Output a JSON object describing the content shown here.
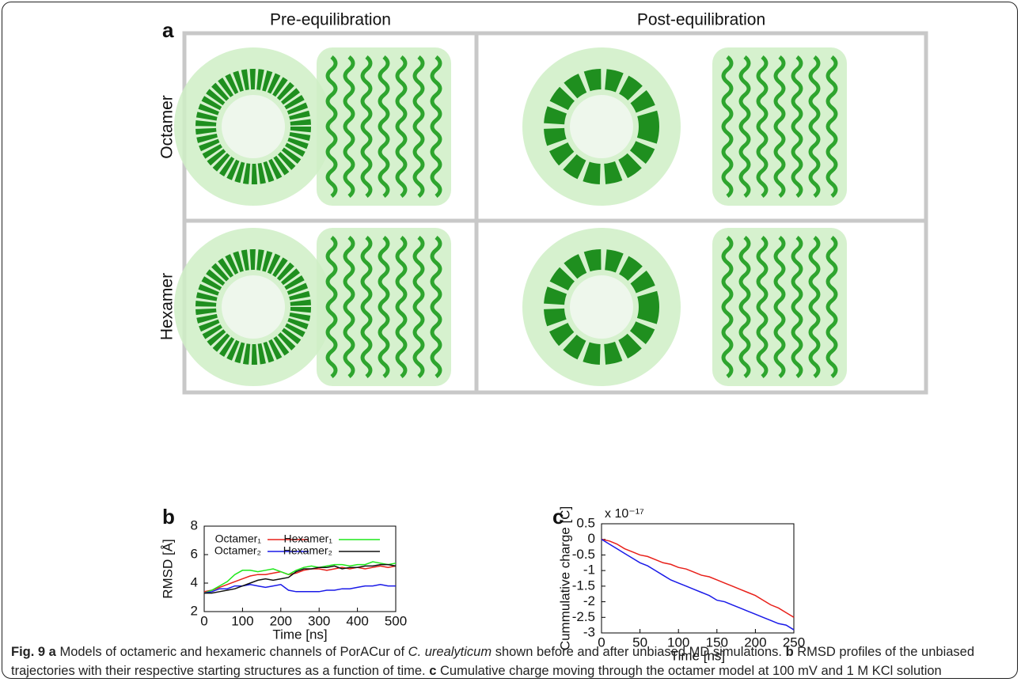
{
  "panel_a": {
    "label": "a",
    "columns": [
      "Pre-equilibration",
      "Post-equilibration"
    ],
    "rows": [
      "Octamer",
      "Hexamer"
    ]
  },
  "chart_data": [
    {
      "type": "line",
      "panel": "b",
      "x_label": "Time [ns]",
      "y_label": "RMSD [Å]",
      "x": [
        0,
        20,
        40,
        60,
        80,
        100,
        120,
        140,
        160,
        180,
        200,
        220,
        240,
        260,
        280,
        300,
        320,
        340,
        360,
        380,
        400,
        420,
        440,
        460,
        480,
        500
      ],
      "series": [
        {
          "name": "Octamer₁",
          "color": "#e8201a",
          "values": [
            3.4,
            3.5,
            3.7,
            3.9,
            4.1,
            4.3,
            4.5,
            4.6,
            4.6,
            4.7,
            4.8,
            4.6,
            4.7,
            4.9,
            5.0,
            5.0,
            4.9,
            5.0,
            5.1,
            5.0,
            5.1,
            5.0,
            5.1,
            5.2,
            5.1,
            5.2
          ]
        },
        {
          "name": "Hexamer₁",
          "color": "#1ee81a",
          "values": [
            3.3,
            3.5,
            3.8,
            4.1,
            4.6,
            4.9,
            4.9,
            4.8,
            4.9,
            5.0,
            4.8,
            4.6,
            4.9,
            5.1,
            5.2,
            5.1,
            5.2,
            5.3,
            5.3,
            5.2,
            5.3,
            5.3,
            5.5,
            5.4,
            5.3,
            5.4
          ]
        },
        {
          "name": "Octamer₂",
          "color": "#1a1ae8",
          "values": [
            3.3,
            3.4,
            3.6,
            3.6,
            3.8,
            3.8,
            3.9,
            3.8,
            3.7,
            3.8,
            3.9,
            3.5,
            3.4,
            3.4,
            3.4,
            3.4,
            3.5,
            3.5,
            3.6,
            3.6,
            3.7,
            3.8,
            3.8,
            3.9,
            3.8,
            3.8
          ]
        },
        {
          "name": "Hexamer₂",
          "color": "#111111",
          "values": [
            3.3,
            3.3,
            3.4,
            3.5,
            3.6,
            3.8,
            4.0,
            4.2,
            4.3,
            4.2,
            4.3,
            4.4,
            4.8,
            5.0,
            5.0,
            5.1,
            5.1,
            5.2,
            5.0,
            5.1,
            5.1,
            5.2,
            5.2,
            5.3,
            5.3,
            5.2
          ]
        }
      ],
      "xlim": [
        0,
        500
      ],
      "xticks": [
        0,
        100,
        200,
        300,
        400,
        500
      ],
      "ylim": [
        2,
        8
      ],
      "yticks": [
        2,
        4,
        6,
        8
      ]
    },
    {
      "type": "line",
      "panel": "c",
      "x_label": "Time [ns]",
      "y_label": "Cummulative charge [C]",
      "y_multiplier": "x 10⁻¹⁷",
      "x": [
        0,
        10,
        20,
        30,
        40,
        50,
        60,
        70,
        80,
        90,
        100,
        110,
        120,
        130,
        140,
        150,
        160,
        170,
        180,
        190,
        200,
        210,
        220,
        230,
        240,
        250
      ],
      "series": [
        {
          "color": "#e8201a",
          "values": [
            0,
            -0.05,
            -0.15,
            -0.3,
            -0.4,
            -0.5,
            -0.55,
            -0.65,
            -0.75,
            -0.8,
            -0.9,
            -0.95,
            -1.05,
            -1.15,
            -1.2,
            -1.3,
            -1.4,
            -1.5,
            -1.6,
            -1.7,
            -1.8,
            -1.95,
            -2.1,
            -2.2,
            -2.35,
            -2.5
          ]
        },
        {
          "color": "#1a1ae8",
          "values": [
            0,
            -0.15,
            -0.3,
            -0.45,
            -0.6,
            -0.75,
            -0.85,
            -1.0,
            -1.15,
            -1.3,
            -1.4,
            -1.5,
            -1.6,
            -1.7,
            -1.8,
            -1.95,
            -2.0,
            -2.1,
            -2.2,
            -2.3,
            -2.4,
            -2.5,
            -2.6,
            -2.7,
            -2.75,
            -2.9
          ]
        }
      ],
      "xlim": [
        0,
        250
      ],
      "xticks": [
        0,
        50,
        100,
        150,
        200,
        250
      ],
      "ylim": [
        -3,
        0.5
      ],
      "yticks": [
        -3,
        -2.5,
        -2,
        -1.5,
        -1,
        -0.5,
        0,
        0.5
      ]
    }
  ],
  "caption": [
    {
      "text": "Fig. 9 a",
      "style": "bold"
    },
    {
      "text": " Models of octameric and hexameric channels of PorACur of ",
      "style": "normal"
    },
    {
      "text": "C. urealyticum",
      "style": "italic"
    },
    {
      "text": " shown before and after unbiased MD simulations. ",
      "style": "normal"
    },
    {
      "text": "b",
      "style": "bold"
    },
    {
      "text": " RMSD profiles of the unbiased trajectories with their respective starting structures as a function of time. ",
      "style": "normal"
    },
    {
      "text": "c",
      "style": "bold"
    },
    {
      "text": " Cumulative charge moving through the octamer model at 100 mV and 1 M KCl solution",
      "style": "normal"
    }
  ]
}
